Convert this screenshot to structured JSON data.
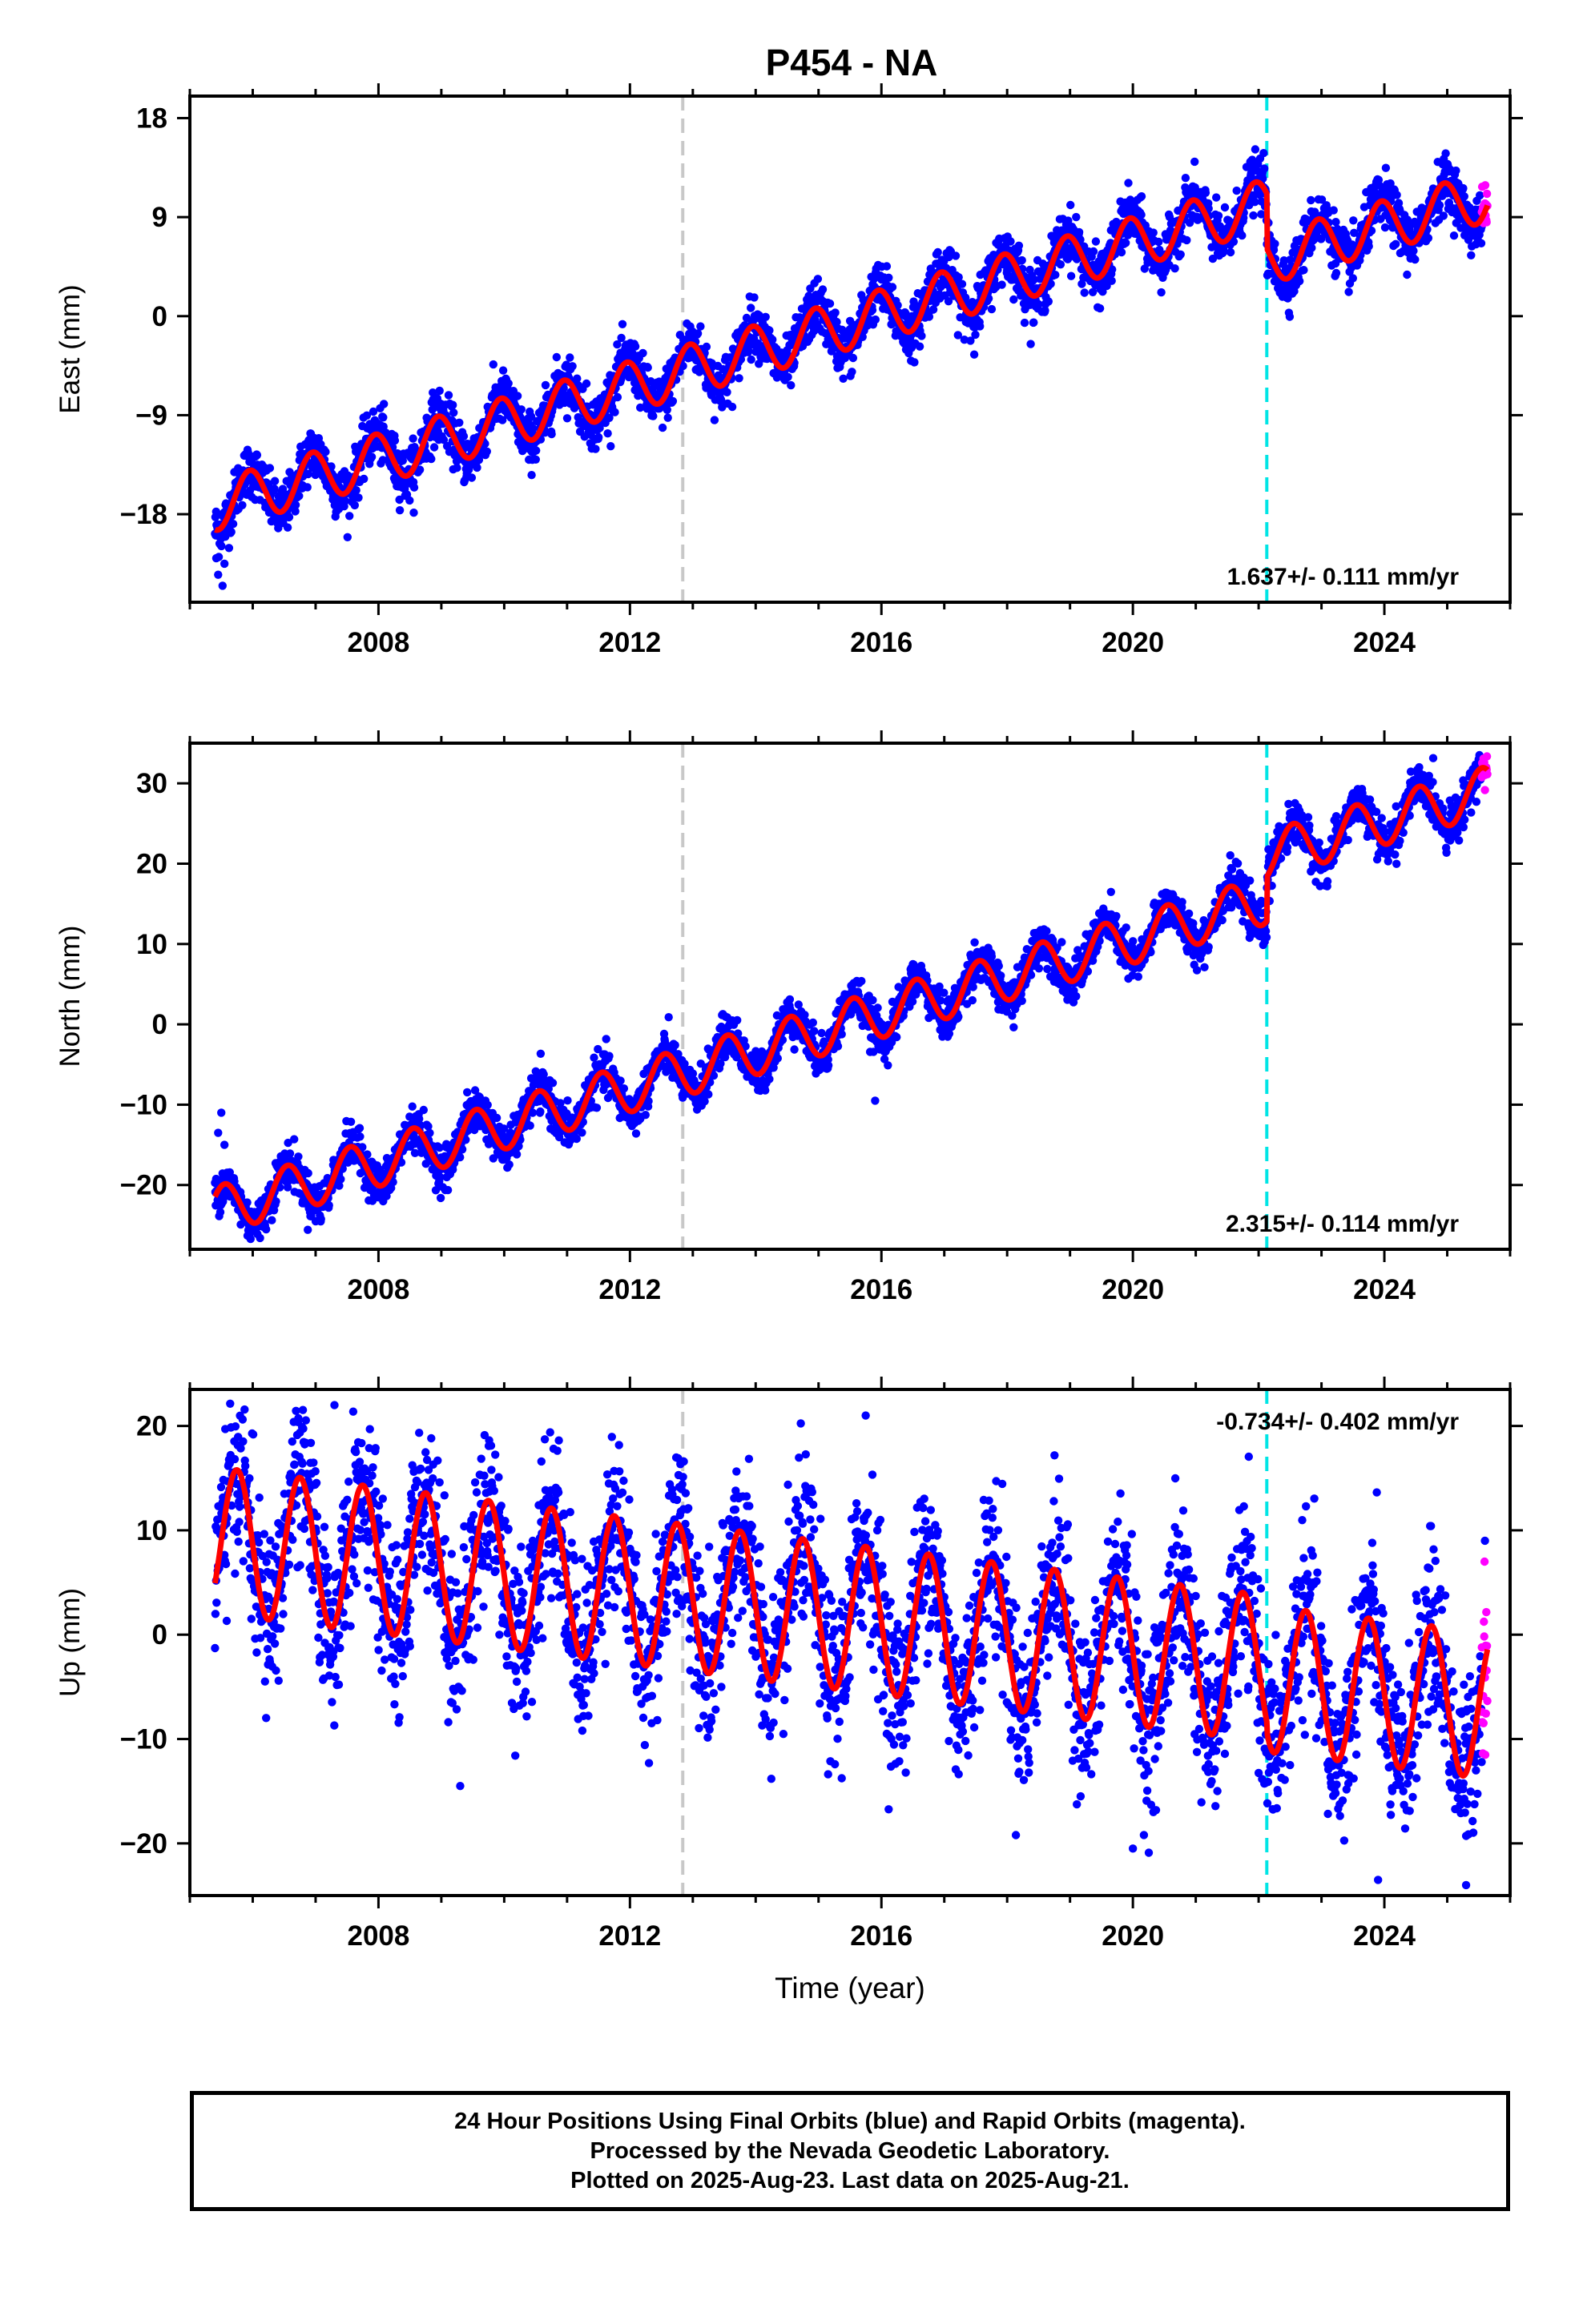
{
  "title": "P454 - NA",
  "colors": {
    "final_orbits": "#0000ff",
    "rapid_orbits": "#ff00ff",
    "model_fit": "#ff0000",
    "event_gray": "#c8c8c8",
    "event_cyan": "#00e5e5"
  },
  "caption": {
    "line1": "24 Hour Positions Using Final Orbits (blue) and Rapid Orbits (magenta).",
    "line2": "Processed by the Nevada Geodetic Laboratory.",
    "line3": "Plotted on 2025-Aug-23. Last data on 2025-Aug-21."
  },
  "chart_data": [
    {
      "type": "scatter",
      "component": "east",
      "ylabel": "East (mm)",
      "xlabel": "",
      "xlim": [
        2005.0,
        2026.0
      ],
      "ylim": [
        -26.0,
        20.0
      ],
      "xticks": [
        2008,
        2012,
        2016,
        2020,
        2024
      ],
      "yticks": [
        -18,
        -9,
        0,
        9,
        18
      ],
      "ytick_labels": [
        "−18",
        "−9",
        "0",
        "9",
        "18"
      ],
      "rate_label": "1.637+/- 0.111 mm/yr",
      "rate_label_position": "bottom-right",
      "data_start": 2005.4,
      "data_end": 2025.64,
      "rapid_start": 2025.55,
      "event_lines": [
        {
          "x": 2012.84,
          "color": "gray"
        },
        {
          "x": 2022.13,
          "color": "cyan"
        }
      ],
      "model": {
        "rate_mm_per_yr": 1.637,
        "value_at_2015": -1.5,
        "annual_amplitude_mm": 2.3,
        "peak_phase_year_fraction": 0.95,
        "offset_at_2022_13": -5.0
      },
      "series": [
        {
          "name": "Final Orbits (blue)",
          "type": "scatter",
          "scatter_std_mm": 1.2
        },
        {
          "name": "Rapid Orbits (magenta)",
          "type": "scatter"
        }
      ],
      "highlight_points": [
        [
          2005.42,
          -22.0
        ],
        [
          2005.45,
          -23.5
        ],
        [
          2005.52,
          -24.5
        ],
        [
          2005.55,
          -22.5
        ]
      ]
    },
    {
      "type": "scatter",
      "component": "north",
      "ylabel": "North (mm)",
      "xlabel": "",
      "xlim": [
        2005.0,
        2026.0
      ],
      "ylim": [
        -28.0,
        35.0
      ],
      "xticks": [
        2008,
        2012,
        2016,
        2020,
        2024
      ],
      "yticks": [
        -20,
        -10,
        0,
        10,
        20,
        30
      ],
      "ytick_labels": [
        "−20",
        "−10",
        "0",
        "10",
        "20",
        "30"
      ],
      "rate_label": "2.315+/- 0.114 mm/yr",
      "rate_label_position": "bottom-right",
      "data_start": 2005.4,
      "data_end": 2025.64,
      "rapid_start": 2025.55,
      "event_lines": [
        {
          "x": 2012.84,
          "color": "gray"
        },
        {
          "x": 2022.13,
          "color": "cyan"
        }
      ],
      "model": {
        "rate_mm_per_yr": 2.315,
        "value_at_2015": -1.0,
        "annual_amplitude_mm": 3.0,
        "peak_phase_year_fraction": 0.55,
        "offset_at_2022_13": 5.5
      },
      "series": [
        {
          "name": "Final Orbits (blue)",
          "type": "scatter",
          "scatter_std_mm": 1.3
        },
        {
          "name": "Rapid Orbits (magenta)",
          "type": "scatter"
        }
      ],
      "highlight_points": [
        [
          2005.45,
          -13.5
        ],
        [
          2005.5,
          -11.0
        ],
        [
          2005.55,
          -15.0
        ],
        [
          2015.9,
          -9.5
        ]
      ]
    },
    {
      "type": "scatter",
      "component": "up",
      "ylabel": "Up (mm)",
      "xlabel": "Time (year)",
      "xlim": [
        2005.0,
        2026.0
      ],
      "ylim": [
        -25.0,
        23.5
      ],
      "xticks": [
        2008,
        2012,
        2016,
        2020,
        2024
      ],
      "yticks": [
        -20,
        -10,
        0,
        10,
        20
      ],
      "ytick_labels": [
        "−20",
        "−10",
        "0",
        "10",
        "20"
      ],
      "rate_label": "-0.734+/- 0.402 mm/yr",
      "rate_label_position": "top-right",
      "data_start": 2005.4,
      "data_end": 2025.64,
      "rapid_start": 2025.55,
      "event_lines": [
        {
          "x": 2012.84,
          "color": "gray"
        },
        {
          "x": 2022.13,
          "color": "cyan"
        }
      ],
      "model": {
        "rate_mm_per_yr": -0.734,
        "value_at_2015": 2.0,
        "annual_amplitude_mm": 7.0,
        "peak_phase_year_fraction": 0.75,
        "offset_at_2022_13": -1.0
      },
      "series": [
        {
          "name": "Final Orbits (blue)",
          "type": "scatter",
          "scatter_std_mm": 4.0
        },
        {
          "name": "Rapid Orbits (magenta)",
          "type": "scatter"
        }
      ],
      "highlight_points": [
        [
          2007.3,
          22.0
        ],
        [
          2015.75,
          21.0
        ],
        [
          2009.3,
          -14.5
        ],
        [
          2020.0,
          -20.5
        ],
        [
          2023.9,
          -23.5
        ],
        [
          2025.3,
          -24.0
        ],
        [
          2025.6,
          9.0
        ]
      ]
    }
  ]
}
